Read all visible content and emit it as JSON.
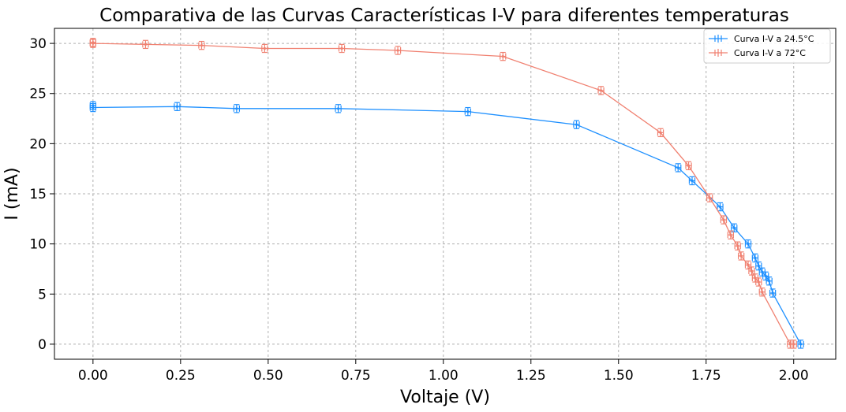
{
  "chart_data": {
    "type": "line",
    "title": "Comparativa de las Curvas Características I-V para diferentes temperaturas",
    "xlabel": "Voltaje (V)",
    "ylabel": "I (mA)",
    "xlim": [
      -0.11,
      2.12
    ],
    "ylim": [
      -1.5,
      31.5
    ],
    "xticks": [
      "0.00",
      "0.25",
      "0.50",
      "0.75",
      "1.00",
      "1.25",
      "1.50",
      "1.75",
      "2.00"
    ],
    "yticks": [
      "0",
      "5",
      "10",
      "15",
      "20",
      "25",
      "30"
    ],
    "grid": true,
    "legend_position": "top-right",
    "series": [
      {
        "name": "Curva I-V a 24.5°C",
        "color": "#1e90ff",
        "x": [
          0.0,
          0.0,
          0.24,
          0.41,
          0.7,
          1.07,
          1.38,
          1.67,
          1.71,
          1.79,
          1.83,
          1.87,
          1.89,
          1.9,
          1.91,
          1.92,
          1.93,
          1.94,
          2.02
        ],
        "y": [
          23.8,
          23.6,
          23.7,
          23.5,
          23.5,
          23.2,
          21.9,
          17.6,
          16.3,
          13.7,
          11.6,
          10.0,
          8.6,
          7.8,
          7.2,
          6.8,
          6.3,
          5.1,
          0.0
        ]
      },
      {
        "name": "Curva I-V a 72°C",
        "color": "#f08070",
        "x": [
          0.0,
          0.0,
          0.15,
          0.31,
          0.49,
          0.71,
          0.87,
          1.17,
          1.45,
          1.62,
          1.7,
          1.76,
          1.8,
          1.82,
          1.84,
          1.85,
          1.87,
          1.88,
          1.89,
          1.9,
          1.91,
          1.99,
          2.0
        ],
        "y": [
          30.1,
          30.0,
          29.9,
          29.8,
          29.5,
          29.5,
          29.3,
          28.7,
          25.3,
          21.1,
          17.8,
          14.6,
          12.4,
          10.9,
          9.8,
          8.8,
          7.9,
          7.3,
          6.6,
          6.2,
          5.2,
          0.0,
          0.0
        ]
      }
    ]
  }
}
